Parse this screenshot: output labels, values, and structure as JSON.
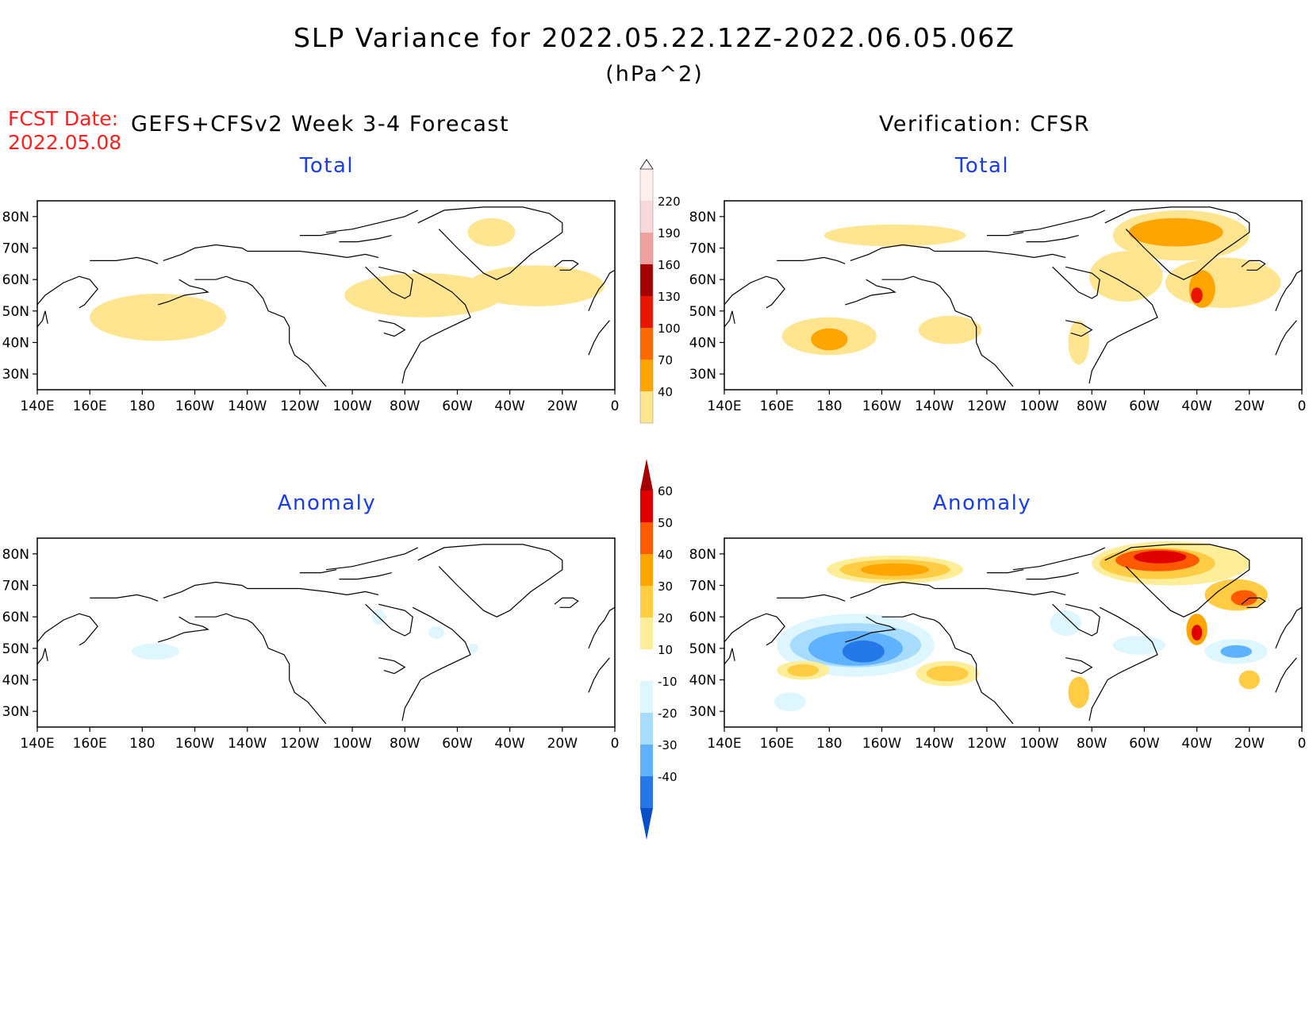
{
  "header": {
    "title": "SLP Variance for 2022.05.22.12Z-2022.06.05.06Z",
    "units": "(hPa^2)",
    "fcst_label": "FCST Date:",
    "fcst_date": "2022.05.08",
    "left_heading": "GEFS+CFSv2 Week 3-4 Forecast",
    "right_heading": "Verification: CFSR"
  },
  "panels": [
    {
      "id": "forecast-total",
      "title": "Total"
    },
    {
      "id": "verification-total",
      "title": "Total"
    },
    {
      "id": "forecast-anomaly",
      "title": "Anomaly"
    },
    {
      "id": "verification-anomaly",
      "title": "Anomaly"
    }
  ],
  "axes": {
    "lat_labels": [
      "80N",
      "70N",
      "60N",
      "50N",
      "40N",
      "30N"
    ],
    "lat_values": [
      80,
      70,
      60,
      50,
      40,
      30
    ],
    "lon_labels": [
      "140E",
      "160E",
      "180",
      "160W",
      "140W",
      "120W",
      "100W",
      "80W",
      "60W",
      "40W",
      "20W",
      "0"
    ],
    "lon_values": [
      140,
      160,
      180,
      200,
      220,
      240,
      260,
      280,
      300,
      320,
      340,
      360
    ],
    "lon_range": [
      140,
      360
    ],
    "lat_range": [
      25,
      85
    ]
  },
  "colorbar_total": {
    "levels": [
      "40",
      "70",
      "100",
      "130",
      "160",
      "190",
      "220"
    ],
    "colors": [
      "#ffe58f",
      "#ffa500",
      "#ff6a00",
      "#e81500",
      "#a50000",
      "#f0a0a0",
      "#f8d8d8",
      "#fff0f0"
    ]
  },
  "colorbar_anomaly": {
    "levels": [
      "60",
      "50",
      "40",
      "30",
      "20",
      "10",
      "-10",
      "-20",
      "-30",
      "-40"
    ],
    "colors": [
      "#a50000",
      "#e00000",
      "#ff5a00",
      "#ffa500",
      "#ffcc44",
      "#ffee99",
      "#ffffff",
      "#ddf6ff",
      "#a8dcff",
      "#5fb2ff",
      "#2478e8",
      "#0a4ec8"
    ]
  },
  "fills": {
    "fcst_total": [
      {
        "lon": 186,
        "lat": 48,
        "rlon": 26,
        "rlat": 7.5,
        "level": "40"
      },
      {
        "lon": 287,
        "lat": 55,
        "rlon": 30,
        "rlat": 7,
        "level": "40"
      },
      {
        "lon": 330,
        "lat": 58,
        "rlon": 26,
        "rlat": 6.5,
        "level": "40"
      },
      {
        "lon": 313,
        "lat": 75,
        "rlon": 9,
        "rlat": 4.5,
        "level": "40"
      }
    ],
    "verif_total": [
      {
        "lon": 205,
        "lat": 74,
        "rlon": 27,
        "rlat": 3.5,
        "level": "40"
      },
      {
        "lon": 180,
        "lat": 42,
        "rlon": 18,
        "rlat": 6,
        "level": "40"
      },
      {
        "lon": 180,
        "lat": 41,
        "rlon": 7,
        "rlat": 3.5,
        "level": "70"
      },
      {
        "lon": 226,
        "lat": 44,
        "rlon": 12,
        "rlat": 4.5,
        "level": "40"
      },
      {
        "lon": 314,
        "lat": 74,
        "rlon": 26,
        "rlat": 8,
        "level": "40"
      },
      {
        "lon": 312,
        "lat": 75,
        "rlon": 18,
        "rlat": 4.5,
        "level": "70"
      },
      {
        "lon": 293,
        "lat": 61,
        "rlon": 14,
        "rlat": 8,
        "level": "40"
      },
      {
        "lon": 330,
        "lat": 59,
        "rlon": 22,
        "rlat": 8,
        "level": "40"
      },
      {
        "lon": 322,
        "lat": 57,
        "rlon": 5,
        "rlat": 6,
        "level": "70"
      },
      {
        "lon": 320,
        "lat": 55,
        "rlon": 2.2,
        "rlat": 2.5,
        "level": "130"
      },
      {
        "lon": 275,
        "lat": 40,
        "rlon": 4,
        "rlat": 7,
        "level": "40"
      }
    ],
    "fcst_anom": [
      {
        "lon": 185,
        "lat": 49,
        "rlon": 9,
        "rlat": 2.6,
        "level": "-10"
      },
      {
        "lon": 270,
        "lat": 60,
        "rlon": 2.5,
        "rlat": 2.5,
        "level": "-10"
      },
      {
        "lon": 292,
        "lat": 55,
        "rlon": 3,
        "rlat": 2,
        "level": "-10"
      },
      {
        "lon": 306,
        "lat": 50,
        "rlon": 2,
        "rlat": 1.5,
        "level": "-10"
      }
    ],
    "verif_anom": [
      {
        "lon": 205,
        "lat": 75,
        "rlon": 26,
        "rlat": 4.5,
        "level": "10"
      },
      {
        "lon": 205,
        "lat": 75,
        "rlon": 21,
        "rlat": 3.2,
        "level": "20"
      },
      {
        "lon": 205,
        "lat": 75,
        "rlon": 13,
        "rlat": 2,
        "level": "30"
      },
      {
        "lon": 190,
        "lat": 51,
        "rlon": 30,
        "rlat": 10,
        "level": "-10"
      },
      {
        "lon": 190,
        "lat": 51,
        "rlon": 25,
        "rlat": 7,
        "level": "-20"
      },
      {
        "lon": 190,
        "lat": 50,
        "rlon": 18,
        "rlat": 5.5,
        "level": "-30"
      },
      {
        "lon": 193,
        "lat": 49,
        "rlon": 8,
        "rlat": 3.5,
        "level": "-40"
      },
      {
        "lon": 310,
        "lat": 77,
        "rlon": 30,
        "rlat": 7,
        "level": "10"
      },
      {
        "lon": 305,
        "lat": 77,
        "rlon": 22,
        "rlat": 5,
        "level": "20"
      },
      {
        "lon": 305,
        "lat": 78,
        "rlon": 16,
        "rlat": 3.5,
        "level": "40"
      },
      {
        "lon": 306,
        "lat": 79,
        "rlon": 10,
        "rlat": 2,
        "level": "50"
      },
      {
        "lon": 320,
        "lat": 56,
        "rlon": 4,
        "rlat": 5,
        "level": "30"
      },
      {
        "lon": 320,
        "lat": 55,
        "rlon": 2,
        "rlat": 2.5,
        "level": "50"
      },
      {
        "lon": 335,
        "lat": 67,
        "rlon": 12,
        "rlat": 5,
        "level": "20"
      },
      {
        "lon": 338,
        "lat": 66,
        "rlon": 5,
        "rlat": 2.5,
        "level": "40"
      },
      {
        "lon": 335,
        "lat": 49,
        "rlon": 12,
        "rlat": 4,
        "level": "-10"
      },
      {
        "lon": 335,
        "lat": 49,
        "rlon": 6,
        "rlat": 2,
        "level": "-30"
      },
      {
        "lon": 225,
        "lat": 42,
        "rlon": 12,
        "rlat": 4,
        "level": "10"
      },
      {
        "lon": 225,
        "lat": 42,
        "rlon": 8,
        "rlat": 2.5,
        "level": "20"
      },
      {
        "lon": 170,
        "lat": 43,
        "rlon": 10,
        "rlat": 3,
        "level": "10"
      },
      {
        "lon": 170,
        "lat": 43,
        "rlon": 6,
        "rlat": 2,
        "level": "20"
      },
      {
        "lon": 275,
        "lat": 36,
        "rlon": 4,
        "rlat": 5,
        "level": "20"
      },
      {
        "lon": 340,
        "lat": 40,
        "rlon": 4,
        "rlat": 3,
        "level": "20"
      },
      {
        "lon": 298,
        "lat": 51,
        "rlon": 10,
        "rlat": 3,
        "level": "-10"
      },
      {
        "lon": 270,
        "lat": 58,
        "rlon": 6,
        "rlat": 4,
        "level": "-10"
      },
      {
        "lon": 165,
        "lat": 33,
        "rlon": 6,
        "rlat": 3,
        "level": "-10"
      }
    ]
  }
}
